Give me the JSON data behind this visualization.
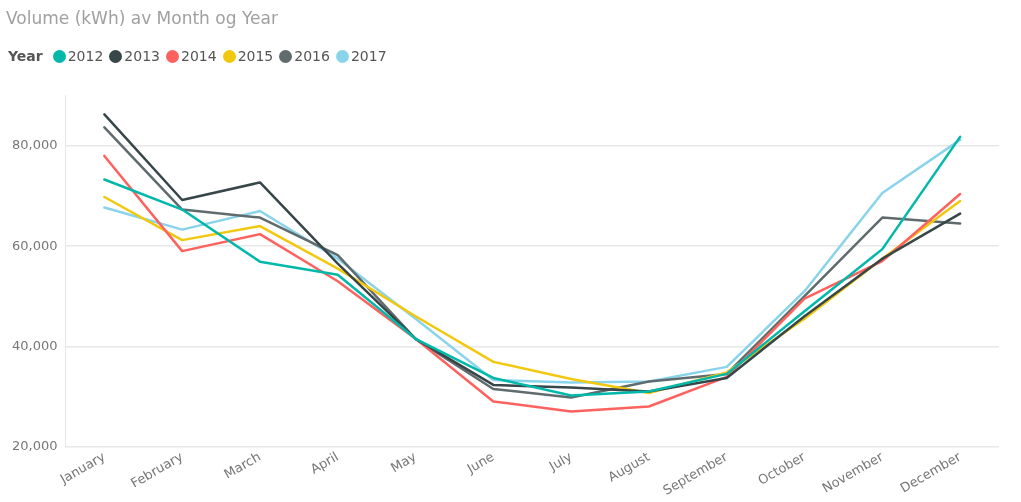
{
  "chart_data": {
    "type": "line",
    "title": "Volume (kWh) av Month og Year",
    "legend_title": "Year",
    "legend": "top left",
    "grid": "y",
    "marker": "none",
    "line_style": "solid",
    "ylim": [
      20000,
      90000
    ],
    "categories": [
      "January",
      "February",
      "March",
      "April",
      "May",
      "June",
      "July",
      "August",
      "September",
      "October",
      "November",
      "December"
    ],
    "yticks": [
      {
        "value": 20000,
        "label": "20,000"
      },
      {
        "value": 40000,
        "label": "40,000"
      },
      {
        "value": 60000,
        "label": "60,000"
      },
      {
        "value": 80000,
        "label": "80,000"
      }
    ],
    "series": [
      {
        "name": "2012",
        "color": "#01b8aa",
        "values": [
          73300,
          67300,
          56900,
          54300,
          41500,
          33700,
          30200,
          31000,
          34500,
          47000,
          59400,
          81800
        ]
      },
      {
        "name": "2013",
        "color": "#374649",
        "values": [
          86300,
          69200,
          72700,
          56500,
          41500,
          32300,
          31800,
          31000,
          33700,
          46000,
          57500,
          66500
        ]
      },
      {
        "name": "2014",
        "color": "#fd625e",
        "values": [
          78000,
          59000,
          62400,
          53000,
          41500,
          29000,
          27000,
          28000,
          33900,
          49500,
          57000,
          70400
        ]
      },
      {
        "name": "2015",
        "color": "#f2c80f",
        "values": [
          69800,
          61200,
          64000,
          55500,
          46000,
          36900,
          33500,
          30700,
          34800,
          45500,
          57500,
          69000
        ]
      },
      {
        "name": "2016",
        "color": "#5f6b6d",
        "values": [
          83700,
          67300,
          65700,
          58200,
          41500,
          31500,
          29800,
          33000,
          34500,
          50000,
          65700,
          64500
        ]
      },
      {
        "name": "2017",
        "color": "#8ad4eb",
        "values": [
          67700,
          63300,
          67000,
          57500,
          45500,
          33300,
          32800,
          33000,
          35900,
          51000,
          70600,
          81200
        ]
      }
    ]
  }
}
